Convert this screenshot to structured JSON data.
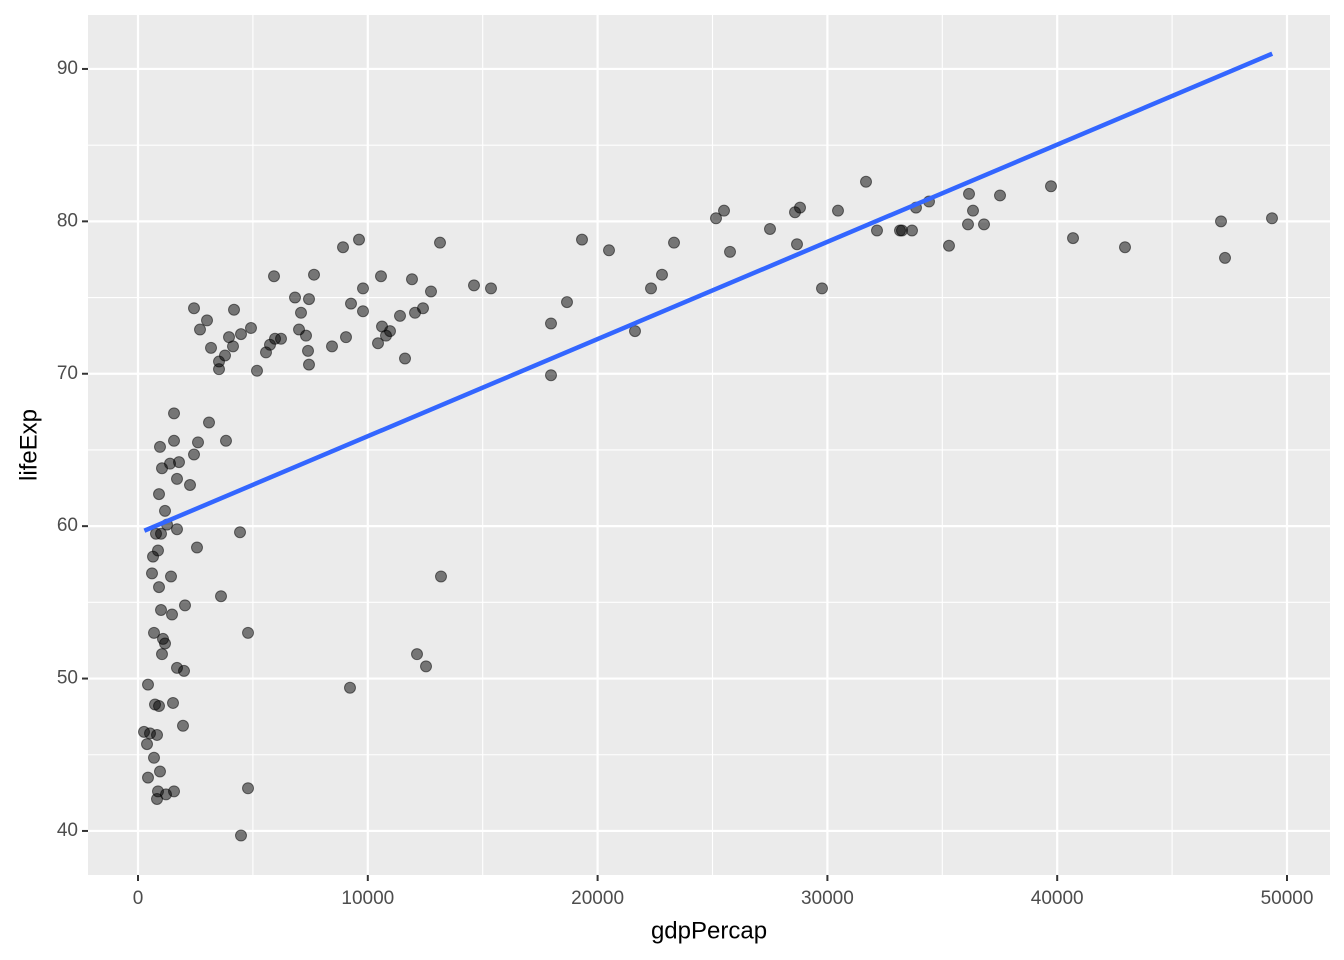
{
  "chart_data": {
    "type": "scatter",
    "x_label": "gdpPercap",
    "y_label": "lifeExp",
    "xlim": [
      -2176,
      51871
    ],
    "ylim": [
      37.11,
      93.54
    ],
    "xticks": [
      0,
      10000,
      20000,
      30000,
      40000,
      50000
    ],
    "yticks": [
      40,
      50,
      60,
      70,
      80,
      90
    ],
    "x_minor_grid": [
      5000,
      15000,
      25000,
      35000,
      45000
    ],
    "y_minor_grid": [
      45,
      55,
      65,
      75,
      85
    ],
    "grid": true,
    "color": "#000000",
    "opacity": 0.5,
    "x": [
      261,
      392,
      435,
      435,
      522,
      609,
      653,
      696,
      696,
      740,
      783,
      827,
      827,
      870,
      870,
      914,
      914,
      914,
      957,
      957,
      1001,
      1001,
      1044,
      1044,
      1088,
      1175,
      1175,
      1218,
      1262,
      1393,
      1436,
      1480,
      1523,
      1567,
      1567,
      1567,
      1697,
      1697,
      1697,
      1784,
      1958,
      2002,
      2045,
      2263,
      2437,
      2437,
      2567,
      2611,
      2698,
      3003,
      3090,
      3177,
      3525,
      3525,
      3612,
      3786,
      3829,
      3960,
      4134,
      4178,
      4439,
      4482,
      4482,
      4787,
      4787,
      4917,
      5178,
      5570,
      5744,
      5918,
      5962,
      6223,
      6832,
      7006,
      7093,
      7311,
      7398,
      7441,
      7441,
      7659,
      8442,
      8921,
      9051,
      9225,
      9269,
      9617,
      9791,
      9791,
      10444,
      10574,
      10618,
      10792,
      10966,
      11401,
      11619,
      11923,
      12054,
      12141,
      12402,
      12533,
      12750,
      13142,
      13185,
      14621,
      15361,
      17972,
      17972,
      18668,
      19321,
      20496,
      21627,
      22324,
      22802,
      23325,
      25152,
      25501,
      25762,
      27502,
      28590,
      28677,
      28808,
      29765,
      30461,
      31680,
      32158,
      33159,
      33246,
      33681,
      33855,
      34421,
      35291,
      36118,
      36162,
      36336,
      36815,
      37511,
      39730,
      40688,
      42950,
      47128,
      47302,
      49347
    ],
    "values": [
      46.5,
      45.7,
      43.5,
      49.6,
      46.4,
      56.9,
      58.0,
      53.0,
      44.8,
      48.3,
      59.5,
      46.3,
      42.1,
      58.4,
      42.6,
      48.2,
      56.0,
      62.1,
      65.2,
      43.9,
      59.5,
      54.5,
      51.6,
      63.8,
      52.6,
      52.3,
      61.0,
      42.4,
      60.1,
      64.1,
      56.7,
      54.2,
      48.4,
      42.6,
      67.4,
      65.6,
      63.1,
      59.8,
      50.7,
      64.2,
      46.9,
      50.5,
      54.8,
      62.7,
      64.7,
      74.3,
      58.6,
      65.5,
      72.9,
      73.5,
      66.8,
      71.7,
      70.8,
      70.3,
      55.4,
      71.2,
      65.6,
      72.4,
      71.8,
      74.2,
      59.6,
      72.6,
      39.7,
      53.0,
      42.8,
      73.0,
      70.2,
      71.4,
      71.9,
      76.4,
      72.3,
      72.3,
      75.0,
      72.9,
      74.0,
      72.5,
      71.5,
      74.9,
      70.6,
      76.5,
      71.8,
      78.3,
      72.4,
      49.4,
      74.6,
      78.8,
      75.6,
      74.1,
      72.0,
      76.4,
      73.1,
      72.5,
      72.8,
      73.8,
      71.0,
      76.2,
      74.0,
      51.6,
      74.3,
      50.8,
      75.4,
      78.6,
      56.7,
      75.8,
      75.6,
      73.3,
      69.9,
      74.7,
      78.8,
      78.1,
      72.8,
      75.6,
      76.5,
      78.6,
      80.2,
      80.7,
      78.0,
      79.5,
      80.6,
      78.5,
      80.9,
      75.6,
      80.7,
      82.6,
      79.4,
      79.4,
      79.4,
      79.4,
      80.9,
      81.3,
      78.4,
      79.8,
      81.8,
      80.7,
      79.8,
      81.7,
      82.3,
      78.9,
      78.3,
      80.0,
      77.6,
      80.2
    ],
    "trend": {
      "type": "line",
      "color": "#3366ff",
      "x": [
        277,
        49357
      ],
      "values": [
        59.7,
        91.0
      ]
    }
  }
}
